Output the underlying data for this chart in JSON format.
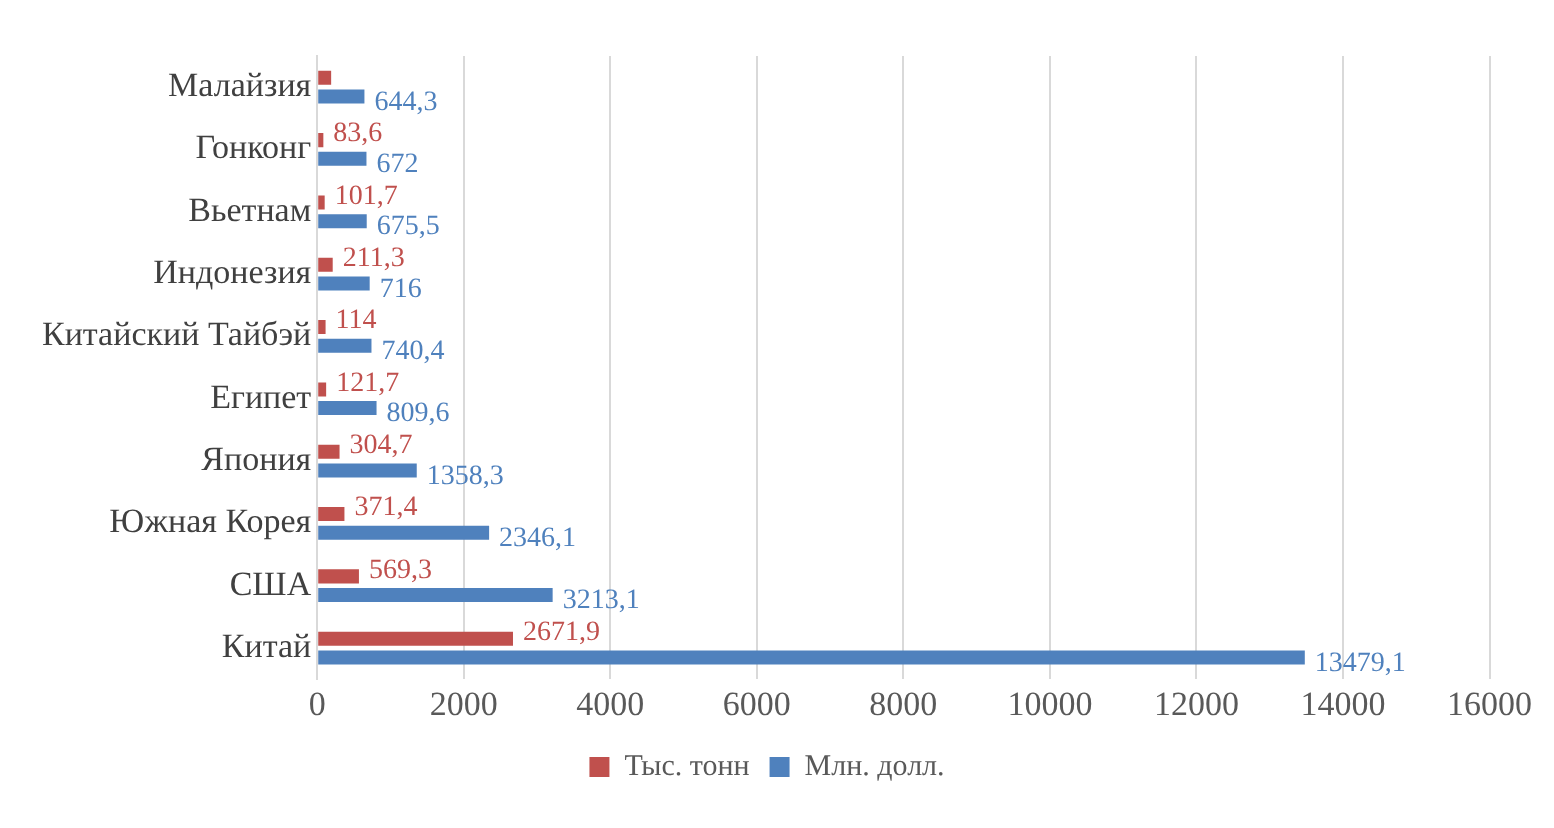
{
  "chart_data": {
    "type": "bar",
    "orientation": "horizontal",
    "categories": [
      "Малайзия",
      "Гонконг",
      "Вьетнам",
      "Индонезия",
      "Китайский Тайбэй",
      "Египет",
      "Япония",
      "Южная Корея",
      "США",
      "Китай"
    ],
    "series": [
      {
        "name": "Тыс. тонн",
        "color": "#c0504d",
        "values": [
          190,
          83.6,
          101.7,
          211.3,
          114,
          121.7,
          304.7,
          371.4,
          569.3,
          2671.9
        ],
        "value_labels": [
          null,
          "83,6",
          "101,7",
          "211,3",
          "114",
          "121,7",
          "304,7",
          "371,4",
          "569,3",
          "2671,9"
        ]
      },
      {
        "name": "Млн. долл.",
        "color": "#4f81bd",
        "values": [
          644.3,
          672,
          675.5,
          716,
          740.4,
          809.6,
          1358.3,
          2346.1,
          3213.1,
          13479.1
        ],
        "value_labels": [
          "644,3",
          "672",
          "675,5",
          "716",
          "740,4",
          "809,6",
          "1358,3",
          "2346,1",
          "3213,1",
          "13479,1"
        ]
      }
    ],
    "xlim": [
      0,
      16000
    ],
    "xticks": [
      0,
      2000,
      4000,
      6000,
      8000,
      10000,
      12000,
      14000,
      16000
    ],
    "grid": "x",
    "legend": "bottom"
  }
}
